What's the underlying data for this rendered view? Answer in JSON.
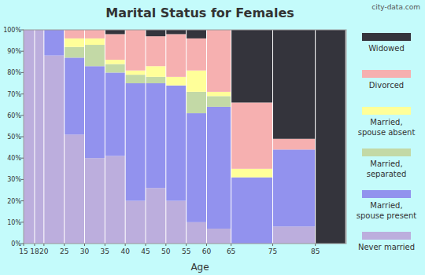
{
  "chart_data": {
    "type": "mosaic",
    "title": "Marital Status for Females",
    "x_label": "Age",
    "annotation": "city-data.com",
    "categories": [
      "15",
      "18",
      "20",
      "25",
      "30",
      "35",
      "40",
      "45",
      "50",
      "55",
      "60",
      "65",
      "75",
      "85"
    ],
    "widths": [
      3.4,
      2.9,
      6.3,
      6.3,
      6.3,
      6.3,
      6.3,
      6.3,
      6.3,
      6.3,
      7.6,
      12.9,
      13.2,
      9.3
    ],
    "xlim": [
      0,
      100
    ],
    "ylim": [
      0,
      100
    ],
    "yticks": [
      {
        "value": 0,
        "label": "0%"
      },
      {
        "value": 10,
        "label": "10%"
      },
      {
        "value": 20,
        "label": "20%"
      },
      {
        "value": 30,
        "label": "30%"
      },
      {
        "value": 40,
        "label": "40%"
      },
      {
        "value": 50,
        "label": "50%"
      },
      {
        "value": 60,
        "label": "60%"
      },
      {
        "value": 70,
        "label": "70%"
      },
      {
        "value": 80,
        "label": "80%"
      },
      {
        "value": 90,
        "label": "90%"
      },
      {
        "value": 100,
        "label": "100%"
      }
    ],
    "stacked": true,
    "grid": false,
    "legend": "right",
    "series": [
      {
        "name": "Never married",
        "color": "#bcaedd",
        "values": [
          100,
          100,
          88,
          51,
          40,
          41,
          20,
          26,
          20,
          10,
          7,
          0,
          8,
          0
        ]
      },
      {
        "name": "Married, spouse present",
        "color": "#9292ee",
        "values": [
          0,
          0,
          12,
          36,
          43,
          39,
          55,
          49,
          54,
          51,
          57,
          31,
          36,
          0
        ]
      },
      {
        "name": "Married, separated",
        "color": "#c3d9a6",
        "values": [
          0,
          0,
          0,
          5,
          10,
          4,
          4,
          3,
          0,
          10,
          5,
          0,
          0,
          0
        ]
      },
      {
        "name": "Married, spouse absent",
        "color": "#ffff99",
        "values": [
          0,
          0,
          0,
          4,
          3,
          2,
          2,
          5,
          4,
          10,
          2,
          4,
          0,
          0
        ]
      },
      {
        "name": "Divorced",
        "color": "#f6b0b0",
        "values": [
          0,
          0,
          0,
          4,
          4,
          12,
          19,
          14,
          20,
          15,
          29,
          31,
          5,
          0
        ]
      },
      {
        "name": "Widowed",
        "color": "#34343c",
        "values": [
          0,
          0,
          0,
          0,
          0,
          2,
          0,
          3,
          2,
          4,
          0,
          34,
          51,
          100
        ]
      }
    ]
  }
}
